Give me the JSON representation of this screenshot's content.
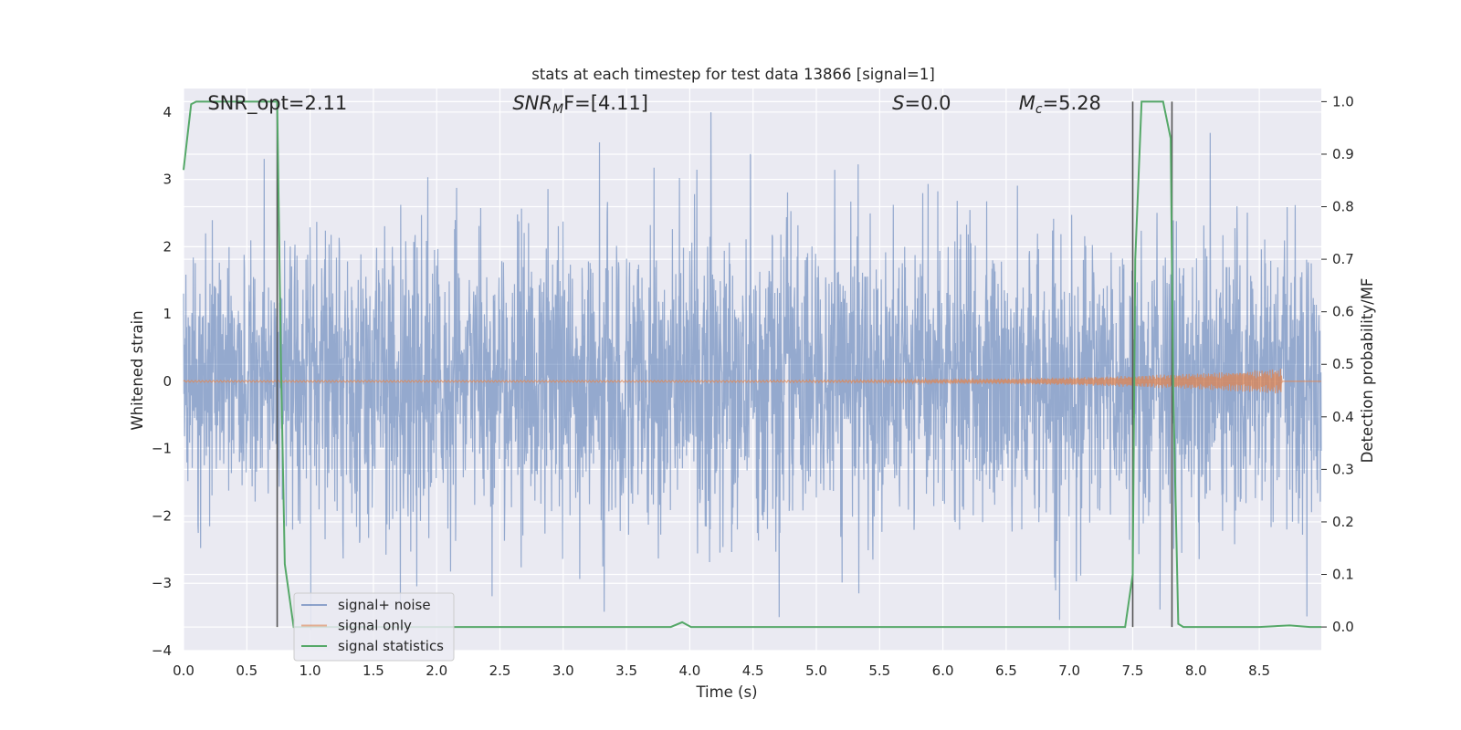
{
  "chart_data": {
    "type": "line",
    "title": "stats at each timestep for test data 13866 [signal=1]",
    "xlabel": "Time (s)",
    "ylabel": "Whitened strain",
    "ylabel_right": "Detection probability/MF",
    "xlim": [
      0.0,
      8.99
    ],
    "ylim": [
      -4.0,
      4.35
    ],
    "ylim_right": [
      -0.045,
      1.025
    ],
    "x_ticks": [
      0.0,
      0.5,
      1.0,
      1.5,
      2.0,
      2.5,
      3.0,
      3.5,
      4.0,
      4.5,
      5.0,
      5.5,
      6.0,
      6.5,
      7.0,
      7.5,
      8.0,
      8.5
    ],
    "x_tick_labels": [
      "0.0",
      "0.5",
      "1.0",
      "1.5",
      "2.0",
      "2.5",
      "3.0",
      "3.5",
      "4.0",
      "4.5",
      "5.0",
      "5.5",
      "6.0",
      "6.5",
      "7.0",
      "7.5",
      "8.0",
      "8.5"
    ],
    "y_ticks": [
      4,
      3,
      2,
      1,
      0,
      -1,
      -2,
      -3,
      -4
    ],
    "y_tick_labels": [
      "4",
      "3",
      "2",
      "1",
      "0",
      "−1",
      "−2",
      "−3",
      "−4"
    ],
    "y_right_ticks": [
      1.0,
      0.9,
      0.8,
      0.7,
      0.6,
      0.5,
      0.4,
      0.3,
      0.2,
      0.1,
      0.0
    ],
    "y_right_tick_labels": [
      "1.0",
      "0.9",
      "0.8",
      "0.7",
      "0.6",
      "0.5",
      "0.4",
      "0.3",
      "0.2",
      "0.1",
      "0.0"
    ],
    "grid": true,
    "legend_position": "lower-left",
    "series": [
      {
        "name": "signal+ noise",
        "color": "#4c72b0",
        "axis": "left",
        "kind": "noisy strain, envelope roughly ±1.3 with spikes to about ±3.7"
      },
      {
        "name": "signal only",
        "color": "#dd8452",
        "axis": "left",
        "chirp": {
          "start": 0.0,
          "end": 8.68,
          "amplitude_end": 0.18
        }
      },
      {
        "name": "signal statistics",
        "color": "#55a868",
        "axis": "right",
        "x": [
          0.0,
          0.06,
          0.1,
          0.2,
          0.3,
          0.5,
          0.7,
          0.74,
          0.77,
          0.8,
          0.87,
          0.9,
          1.0,
          2.0,
          3.0,
          3.5,
          3.85,
          3.94,
          4.01,
          4.5,
          5.0,
          6.0,
          7.0,
          7.44,
          7.5,
          7.52,
          7.57,
          7.6,
          7.7,
          7.74,
          7.8,
          7.82,
          7.86,
          7.9,
          8.0,
          8.5,
          8.74,
          8.9,
          8.99
        ],
        "y": [
          0.87,
          0.995,
          1.0,
          1.0,
          1.0,
          1.0,
          1.0,
          1.0,
          0.5,
          0.12,
          0.0,
          0.0,
          0.0,
          0.0,
          0.0,
          0.0,
          0.0,
          0.009,
          0.0,
          0.0,
          0.0,
          0.0,
          0.0,
          0.0,
          0.1,
          0.7,
          1.0,
          1.0,
          1.0,
          1.0,
          0.93,
          0.45,
          0.006,
          0.0,
          0.0,
          0.0,
          0.003,
          0.0,
          0.0
        ]
      }
    ],
    "vertical_lines": [
      0.74,
      7.5,
      7.81
    ],
    "vertical_lines_color": "#555555",
    "annotations": [
      {
        "text": "SNR_opt=2.11",
        "x": 0.19,
        "y": 4.13
      },
      {
        "text": "SNR",
        "sub": "M",
        "rest": "F=[4.11]",
        "italic": true,
        "x": 2.6,
        "y": 4.13
      },
      {
        "text": "S",
        "rest": "=0.0",
        "italic": true,
        "x": 5.6,
        "y": 4.13
      },
      {
        "text": "M",
        "sub": "c",
        "rest": "=5.28",
        "italic": true,
        "x": 6.6,
        "y": 4.13
      }
    ]
  }
}
